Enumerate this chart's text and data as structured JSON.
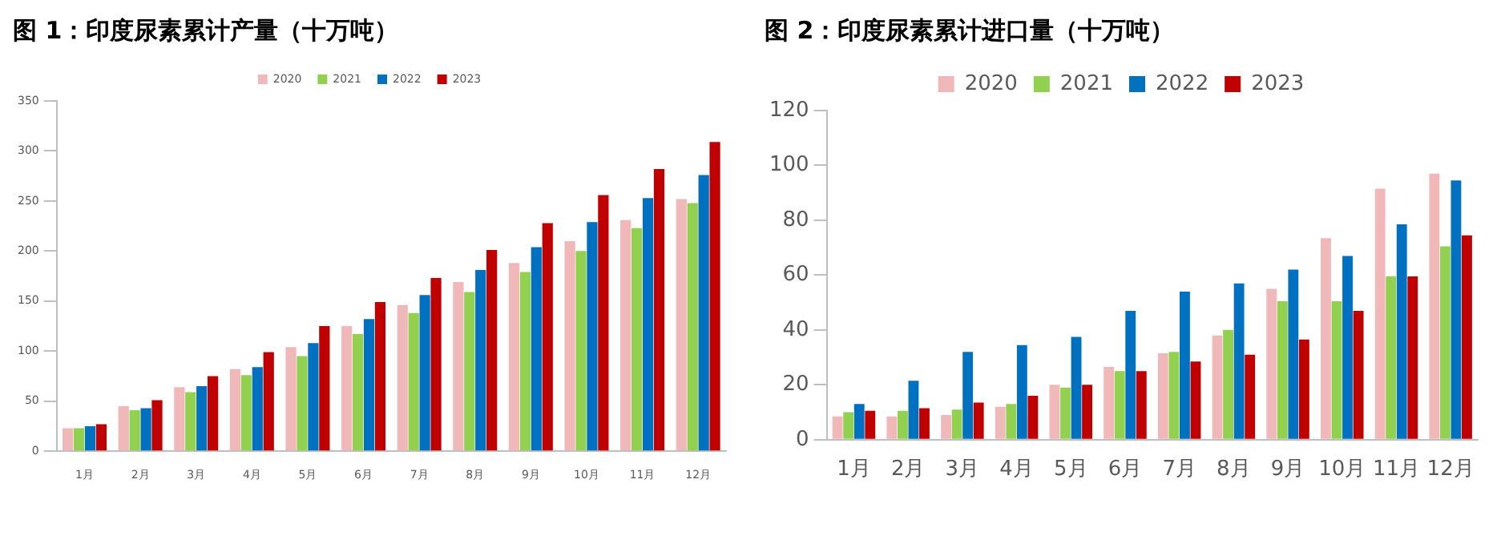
{
  "chart_data": [
    {
      "type": "bar",
      "title": "图 1：印度尿素累计产量（十万吨）",
      "categories": [
        "1月",
        "2月",
        "3月",
        "4月",
        "5月",
        "6月",
        "7月",
        "8月",
        "9月",
        "10月",
        "11月",
        "12月"
      ],
      "series": [
        {
          "name": "2020",
          "color": "#f0b8b8",
          "values": [
            23,
            45,
            64,
            82,
            104,
            125,
            146,
            169,
            188,
            210,
            231,
            252
          ]
        },
        {
          "name": "2021",
          "color": "#92d050",
          "values": [
            23,
            41,
            59,
            76,
            95,
            117,
            138,
            159,
            179,
            200,
            223,
            248
          ]
        },
        {
          "name": "2022",
          "color": "#0070c0",
          "values": [
            25,
            43,
            65,
            84,
            108,
            132,
            156,
            181,
            204,
            229,
            253,
            276
          ]
        },
        {
          "name": "2023",
          "color": "#c00000",
          "values": [
            27,
            51,
            75,
            99,
            125,
            149,
            173,
            201,
            228,
            256,
            282,
            309
          ]
        }
      ],
      "ylim": [
        0,
        350
      ],
      "yticks": [
        0,
        50,
        100,
        150,
        200,
        250,
        300,
        350
      ],
      "grid": false,
      "legend": "top"
    },
    {
      "type": "bar",
      "title": "图 2：印度尿素累计进口量（十万吨）",
      "categories": [
        "1月",
        "2月",
        "3月",
        "4月",
        "5月",
        "6月",
        "7月",
        "8月",
        "9月",
        "10月",
        "11月",
        "12月"
      ],
      "series": [
        {
          "name": "2020",
          "color": "#f0b8b8",
          "values": [
            8.5,
            8.5,
            9,
            12,
            20,
            26.5,
            31.5,
            38,
            55,
            73.5,
            91.5,
            97
          ]
        },
        {
          "name": "2021",
          "color": "#92d050",
          "values": [
            10,
            10.5,
            11,
            13,
            19,
            25,
            32,
            40,
            50.5,
            50.5,
            59.5,
            70.5
          ]
        },
        {
          "name": "2022",
          "color": "#0070c0",
          "values": [
            13,
            21.5,
            32,
            34.5,
            37.5,
            47,
            54,
            57,
            62,
            67,
            78.5,
            94.5
          ]
        },
        {
          "name": "2023",
          "color": "#c00000",
          "values": [
            10.5,
            11.5,
            13.5,
            16,
            20,
            25,
            28.5,
            31,
            36.5,
            47,
            59.5,
            74.5
          ]
        }
      ],
      "ylim": [
        0,
        120
      ],
      "yticks": [
        0,
        20,
        40,
        60,
        80,
        100,
        120
      ],
      "grid": false,
      "legend": "top"
    }
  ]
}
